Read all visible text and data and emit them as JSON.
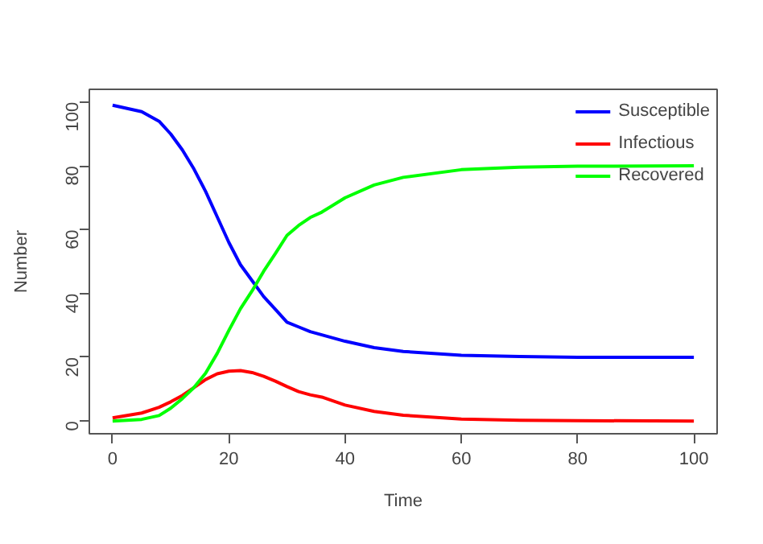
{
  "chart_data": {
    "type": "line",
    "xlabel": "Time",
    "ylabel": "Number",
    "x": [
      0,
      5,
      8,
      10,
      12,
      14,
      16,
      18,
      20,
      22,
      24,
      26,
      28,
      30,
      32,
      34,
      36,
      40,
      45,
      50,
      60,
      70,
      80,
      100
    ],
    "series": [
      {
        "name": "Susceptible",
        "color": "#0000ff",
        "values": [
          99,
          97,
          94,
          90,
          85,
          79,
          72,
          64,
          56,
          49,
          44,
          39,
          35,
          31,
          29.5,
          28,
          27,
          25,
          23,
          21.8,
          20.6,
          20.2,
          20,
          20
        ]
      },
      {
        "name": "Infectious",
        "color": "#ff0000",
        "values": [
          1,
          2.5,
          4.3,
          6,
          8,
          10.5,
          13,
          14.8,
          15.6,
          15.8,
          15.2,
          14,
          12.5,
          10.8,
          9.2,
          8.2,
          7.5,
          5,
          3,
          1.8,
          0.6,
          0.2,
          0.1,
          0
        ]
      },
      {
        "name": "Recovered",
        "color": "#00ff00",
        "values": [
          0,
          0.5,
          1.7,
          4,
          7,
          10.5,
          15,
          21.2,
          28.4,
          35.2,
          40.8,
          47,
          52.5,
          58.2,
          61.3,
          63.8,
          65.5,
          70,
          74,
          76.4,
          78.8,
          79.6,
          79.9,
          80
        ]
      }
    ],
    "xlim": [
      -4,
      104
    ],
    "ylim": [
      -4,
      104
    ],
    "xticks": [
      0,
      20,
      40,
      60,
      80,
      100
    ],
    "yticks": [
      0,
      20,
      40,
      60,
      80,
      100
    ],
    "grid": false,
    "legend": "top right",
    "line_style": "solid",
    "marker": "none"
  }
}
